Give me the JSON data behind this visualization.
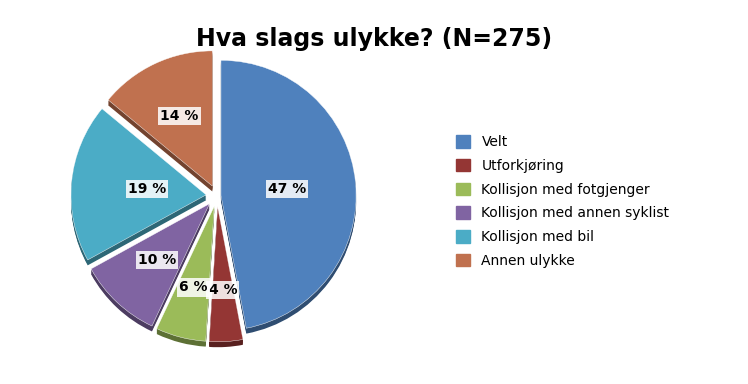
{
  "title": "Hva slags ulykke? (N=275)",
  "slices": [
    47,
    4,
    6,
    10,
    19,
    14
  ],
  "labels": [
    "Velt",
    "Utforkjøring",
    "Kollisjon med fotgjenger",
    "Kollisjon med annen syklist",
    "Kollisjon med bil",
    "Annen ulykke"
  ],
  "colors": [
    "#4F81BD",
    "#943634",
    "#9BBB59",
    "#8064A2",
    "#4BACC6",
    "#C0714F"
  ],
  "pct_labels": [
    "47 %",
    "4 %",
    "6 %",
    "10 %",
    "19 %",
    "14 %"
  ],
  "explode": [
    0.03,
    0.08,
    0.08,
    0.08,
    0.08,
    0.08
  ],
  "startangle": 90,
  "title_fontsize": 17,
  "label_fontsize": 10,
  "legend_fontsize": 10
}
